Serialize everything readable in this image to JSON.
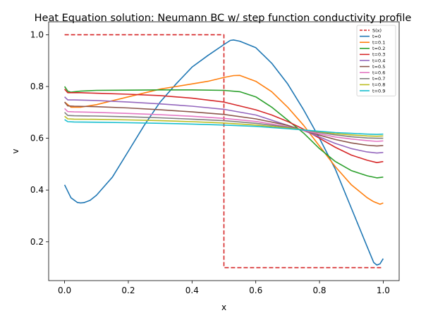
{
  "chart_data": {
    "type": "line",
    "title": "Heat Equation solution: Neumann BC w/ step function conductivity profile",
    "xlabel": "x",
    "ylabel": "v",
    "xlim": [
      -0.05,
      1.05
    ],
    "ylim": [
      0.05,
      1.05
    ],
    "xticks": [
      "0.0",
      "0.2",
      "0.4",
      "0.6",
      "0.8",
      "1.0"
    ],
    "yticks": [
      "0.2",
      "0.4",
      "0.6",
      "0.8",
      "1.0"
    ],
    "grid": false,
    "legend_position": "top-right",
    "series": [
      {
        "name": "S(x)",
        "color": "#d62728",
        "dash": true,
        "x": [
          0.0,
          0.5,
          0.5,
          1.0
        ],
        "y": [
          1.0,
          1.0,
          0.1,
          0.1
        ]
      },
      {
        "name": "t=0",
        "color": "#1f77b4",
        "x": [
          0.0,
          0.02,
          0.04,
          0.05,
          0.06,
          0.08,
          0.1,
          0.15,
          0.2,
          0.25,
          0.3,
          0.35,
          0.4,
          0.45,
          0.5,
          0.52,
          0.53,
          0.55,
          0.6,
          0.65,
          0.7,
          0.75,
          0.8,
          0.85,
          0.9,
          0.95,
          0.97,
          0.98,
          0.99,
          1.0
        ],
        "y": [
          0.42,
          0.37,
          0.352,
          0.35,
          0.351,
          0.36,
          0.38,
          0.45,
          0.55,
          0.65,
          0.74,
          0.81,
          0.875,
          0.92,
          0.962,
          0.978,
          0.98,
          0.975,
          0.95,
          0.89,
          0.81,
          0.71,
          0.6,
          0.48,
          0.33,
          0.18,
          0.12,
          0.11,
          0.115,
          0.135
        ]
      },
      {
        "name": "t=0.1",
        "color": "#ff7f0e",
        "x": [
          0.0,
          0.02,
          0.05,
          0.1,
          0.15,
          0.2,
          0.25,
          0.3,
          0.35,
          0.4,
          0.45,
          0.5,
          0.53,
          0.55,
          0.6,
          0.65,
          0.7,
          0.75,
          0.8,
          0.85,
          0.9,
          0.95,
          0.97,
          0.99,
          1.0
        ],
        "y": [
          0.74,
          0.72,
          0.72,
          0.73,
          0.745,
          0.76,
          0.775,
          0.79,
          0.8,
          0.81,
          0.82,
          0.835,
          0.842,
          0.843,
          0.82,
          0.78,
          0.72,
          0.65,
          0.57,
          0.49,
          0.42,
          0.37,
          0.355,
          0.345,
          0.35
        ]
      },
      {
        "name": "t=0.2",
        "color": "#2ca02c",
        "x": [
          0.0,
          0.01,
          0.02,
          0.05,
          0.1,
          0.2,
          0.3,
          0.4,
          0.5,
          0.55,
          0.6,
          0.65,
          0.7,
          0.75,
          0.8,
          0.85,
          0.9,
          0.95,
          0.98,
          1.0
        ],
        "y": [
          0.8,
          0.782,
          0.778,
          0.782,
          0.785,
          0.786,
          0.787,
          0.787,
          0.785,
          0.78,
          0.76,
          0.72,
          0.67,
          0.62,
          0.56,
          0.51,
          0.475,
          0.455,
          0.447,
          0.45
        ]
      },
      {
        "name": "t=0.3",
        "color": "#d62728",
        "x": [
          0.0,
          0.01,
          0.03,
          0.05,
          0.1,
          0.2,
          0.3,
          0.4,
          0.5,
          0.6,
          0.65,
          0.7,
          0.75,
          0.8,
          0.85,
          0.9,
          0.95,
          0.98,
          1.0
        ],
        "y": [
          0.79,
          0.776,
          0.776,
          0.776,
          0.774,
          0.77,
          0.765,
          0.755,
          0.74,
          0.71,
          0.69,
          0.665,
          0.635,
          0.6,
          0.565,
          0.535,
          0.515,
          0.506,
          0.51
        ]
      },
      {
        "name": "t=0.4",
        "color": "#9467bd",
        "x": [
          0.0,
          0.01,
          0.03,
          0.1,
          0.2,
          0.3,
          0.4,
          0.5,
          0.6,
          0.7,
          0.75,
          0.8,
          0.85,
          0.9,
          0.95,
          0.98,
          1.0
        ],
        "y": [
          0.76,
          0.748,
          0.748,
          0.746,
          0.74,
          0.733,
          0.724,
          0.712,
          0.69,
          0.65,
          0.63,
          0.605,
          0.58,
          0.56,
          0.547,
          0.543,
          0.545
        ]
      },
      {
        "name": "t=0.5",
        "color": "#8c564b",
        "x": [
          0.0,
          0.01,
          0.03,
          0.1,
          0.2,
          0.3,
          0.4,
          0.5,
          0.6,
          0.7,
          0.75,
          0.8,
          0.85,
          0.9,
          0.95,
          0.98,
          1.0
        ],
        "y": [
          0.74,
          0.725,
          0.724,
          0.722,
          0.717,
          0.71,
          0.702,
          0.692,
          0.675,
          0.65,
          0.63,
          0.612,
          0.595,
          0.582,
          0.573,
          0.57,
          0.572
        ]
      },
      {
        "name": "t=0.6",
        "color": "#e377c2",
        "x": [
          0.0,
          0.01,
          0.03,
          0.1,
          0.2,
          0.3,
          0.4,
          0.5,
          0.6,
          0.7,
          0.75,
          0.8,
          0.85,
          0.9,
          0.95,
          0.98,
          1.0
        ],
        "y": [
          0.715,
          0.703,
          0.702,
          0.7,
          0.696,
          0.691,
          0.685,
          0.677,
          0.665,
          0.645,
          0.63,
          0.617,
          0.605,
          0.597,
          0.591,
          0.588,
          0.59
        ]
      },
      {
        "name": "t=0.7",
        "color": "#7f7f7f",
        "x": [
          0.0,
          0.01,
          0.03,
          0.1,
          0.2,
          0.3,
          0.4,
          0.5,
          0.6,
          0.7,
          0.75,
          0.8,
          0.85,
          0.9,
          0.95,
          0.98,
          1.0
        ],
        "y": [
          0.7,
          0.688,
          0.687,
          0.686,
          0.683,
          0.679,
          0.674,
          0.668,
          0.658,
          0.643,
          0.632,
          0.622,
          0.613,
          0.606,
          0.601,
          0.6,
          0.6
        ]
      },
      {
        "name": "t=0.8",
        "color": "#bcbd22",
        "x": [
          0.0,
          0.01,
          0.03,
          0.1,
          0.2,
          0.3,
          0.4,
          0.5,
          0.6,
          0.7,
          0.75,
          0.8,
          0.85,
          0.9,
          0.95,
          0.98,
          1.0
        ],
        "y": [
          0.685,
          0.675,
          0.674,
          0.673,
          0.671,
          0.668,
          0.664,
          0.659,
          0.651,
          0.64,
          0.633,
          0.625,
          0.618,
          0.613,
          0.609,
          0.608,
          0.609
        ]
      },
      {
        "name": "t=0.9",
        "color": "#17becf",
        "x": [
          0.0,
          0.01,
          0.03,
          0.1,
          0.2,
          0.3,
          0.4,
          0.5,
          0.6,
          0.7,
          0.75,
          0.8,
          0.85,
          0.9,
          0.95,
          0.98,
          1.0
        ],
        "y": [
          0.672,
          0.664,
          0.663,
          0.662,
          0.66,
          0.658,
          0.655,
          0.651,
          0.646,
          0.637,
          0.632,
          0.627,
          0.622,
          0.619,
          0.616,
          0.615,
          0.616
        ]
      }
    ]
  }
}
